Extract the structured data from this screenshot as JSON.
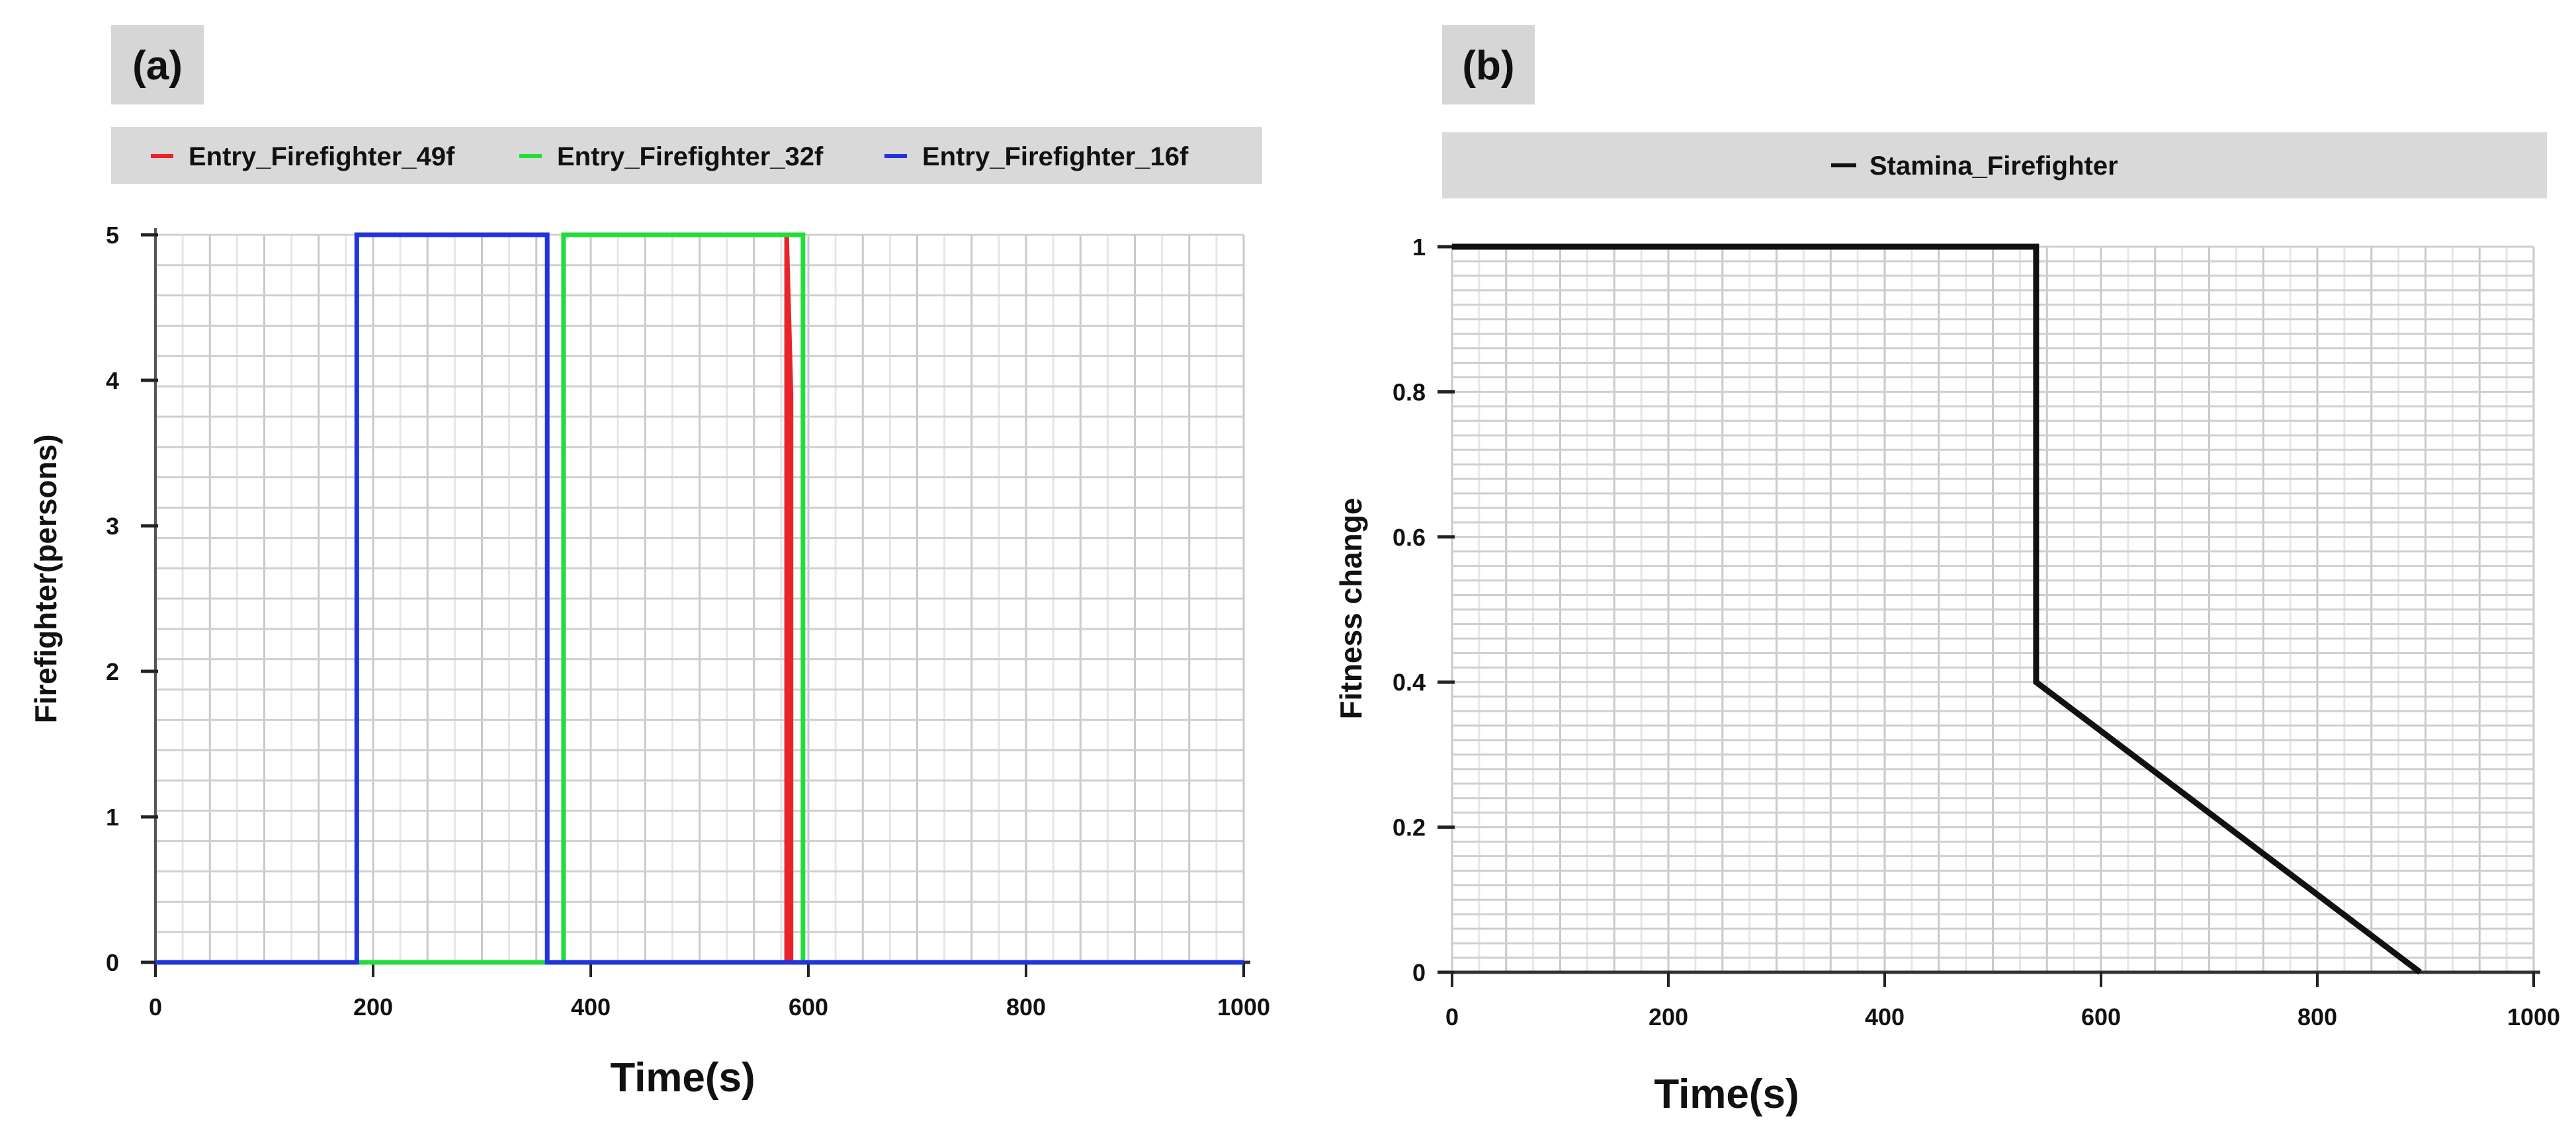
{
  "chart_data": [
    {
      "type": "line",
      "panel_label": "(a)",
      "xlabel": "Time(s)",
      "ylabel": "Firefighter(persons)",
      "xlim": [
        0,
        1000
      ],
      "ylim": [
        0,
        5
      ],
      "xticks": [
        0,
        200,
        400,
        600,
        800,
        1000
      ],
      "yticks": [
        0,
        1,
        2,
        3,
        4,
        5
      ],
      "grid": true,
      "legend_position": "top",
      "series": [
        {
          "name": "Entry_Firefighter_49f",
          "color": "#e8242a",
          "x": [
            0,
            580,
            580,
            584,
            584,
            1000
          ],
          "y": [
            0,
            0,
            5,
            3.9,
            0,
            0
          ]
        },
        {
          "name": "Entry_Firefighter_32f",
          "color": "#22dd3a",
          "x": [
            0,
            375,
            375,
            595,
            595,
            1000
          ],
          "y": [
            0,
            0,
            5,
            5,
            0,
            0
          ]
        },
        {
          "name": "Entry_Firefighter_16f",
          "color": "#2233dd",
          "x": [
            0,
            185,
            185,
            360,
            360,
            1000
          ],
          "y": [
            0,
            0,
            5,
            5,
            0,
            0
          ]
        }
      ]
    },
    {
      "type": "line",
      "panel_label": "(b)",
      "xlabel": "Time(s)",
      "ylabel": "Fitness change",
      "xlim": [
        0,
        1000
      ],
      "ylim": [
        0,
        1
      ],
      "xticks": [
        0,
        200,
        400,
        600,
        800,
        1000
      ],
      "yticks": [
        0,
        0.2,
        0.4,
        0.6,
        0.8,
        1
      ],
      "ytick_labels": [
        "0",
        "0.2",
        "0.4",
        "0.6",
        "0.8",
        "1"
      ],
      "grid": true,
      "legend_position": "top",
      "series": [
        {
          "name": "Stamina_Firefighter",
          "color": "#111111",
          "x": [
            0,
            540,
            540,
            895
          ],
          "y": [
            1,
            1,
            0.4,
            0
          ]
        }
      ]
    }
  ]
}
